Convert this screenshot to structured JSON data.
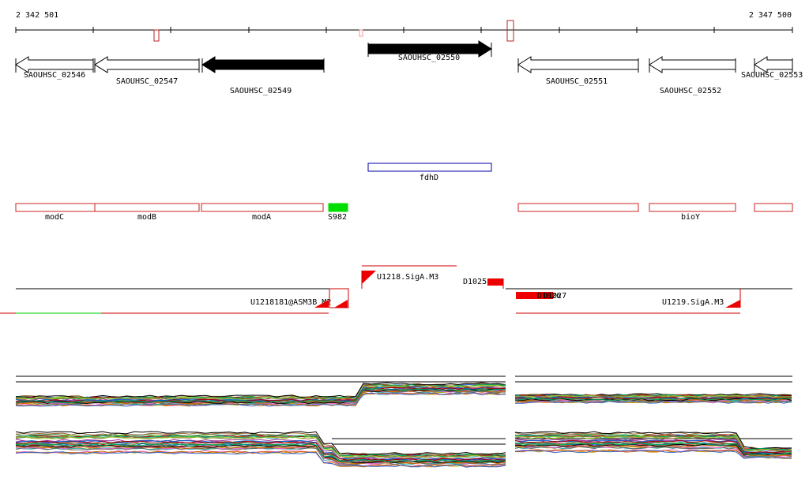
{
  "axis": {
    "start": "2 342 501",
    "end": "2 347 500"
  },
  "genes": [
    {
      "label": "SAOUHSC_02546"
    },
    {
      "label": "SAOUHSC_02547"
    },
    {
      "label": "SAOUHSC_02549"
    },
    {
      "label": "SAOUHSC_02550"
    },
    {
      "label": "SAOUHSC_02551"
    },
    {
      "label": "SAOUHSC_02552"
    },
    {
      "label": "SAOUHSC_02553"
    }
  ],
  "features": {
    "fdhD": "fdhD",
    "names": [
      "modC",
      "modB",
      "modA",
      "S982",
      "bioY"
    ]
  },
  "segments": [
    "U1218.SigA.M3",
    "D1025",
    "U1218181@ASM3B_M2",
    "D1026",
    "D1027",
    "U1219.SigA.M3"
  ]
}
